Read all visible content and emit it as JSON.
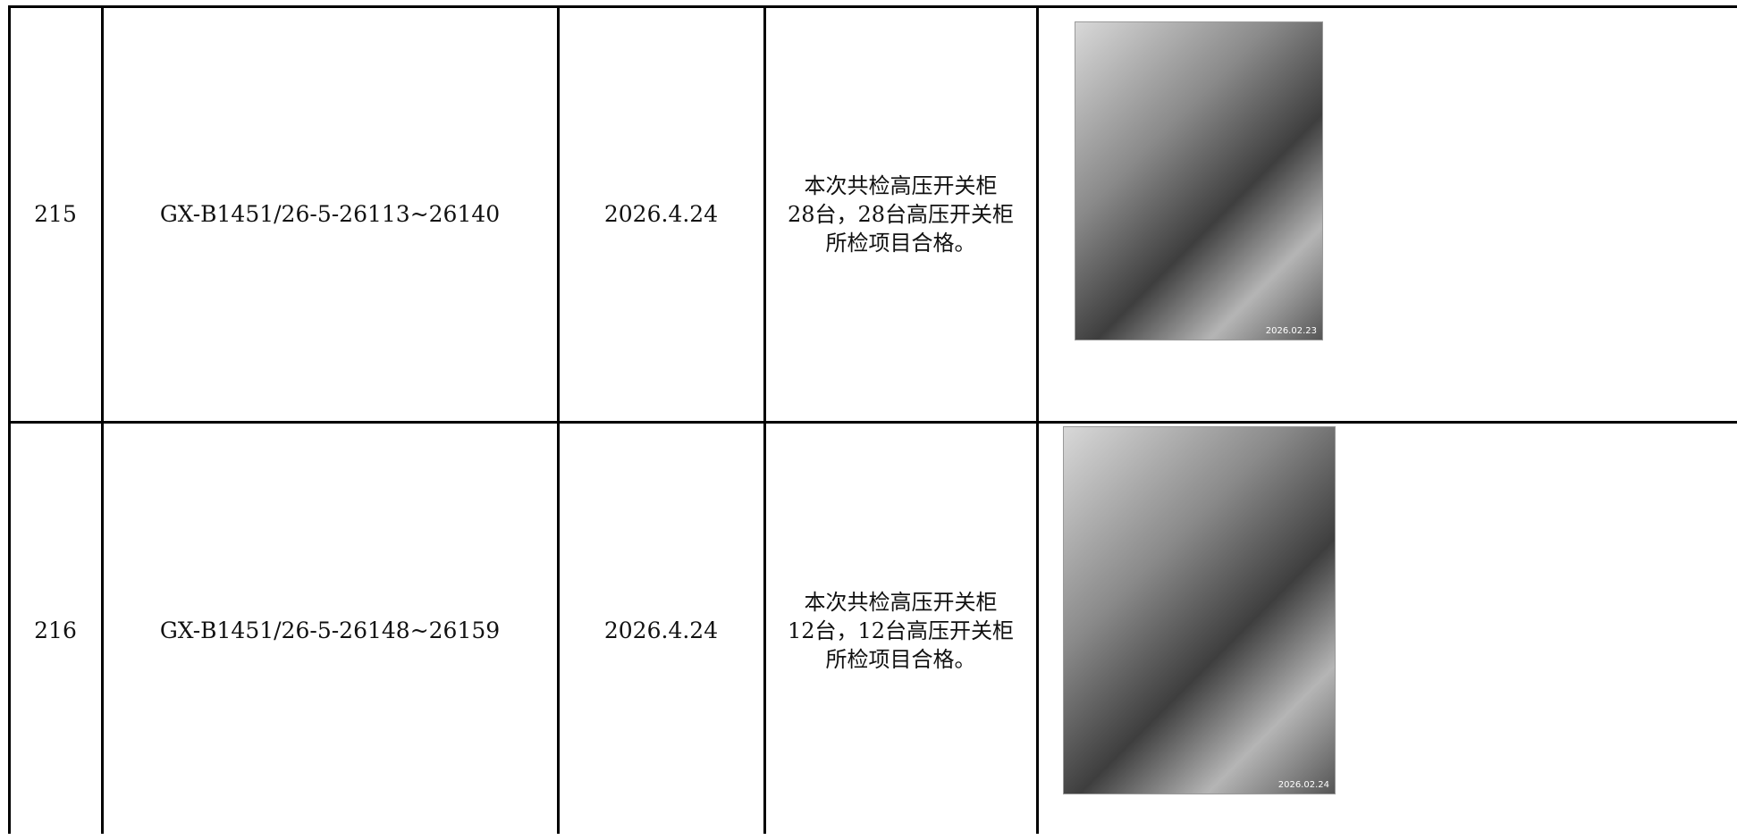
{
  "table": {
    "rows": [
      {
        "no": "215",
        "code": "GX-B1451/26-5-26113~26140",
        "date": "2026.4.24",
        "desc": [
          "本次共检高压开关柜",
          "28台，28台高压开关柜",
          "所检项目合格。"
        ],
        "photo_stamp": "2026.02.23"
      },
      {
        "no": "216",
        "code": "GX-B1451/26-5-26148~26159",
        "date": "2026.4.24",
        "desc": [
          "本次共检高压开关柜",
          "12台，12台高压开关柜",
          "所检项目合格。"
        ],
        "photo_stamp": "2026.02.24"
      }
    ]
  }
}
